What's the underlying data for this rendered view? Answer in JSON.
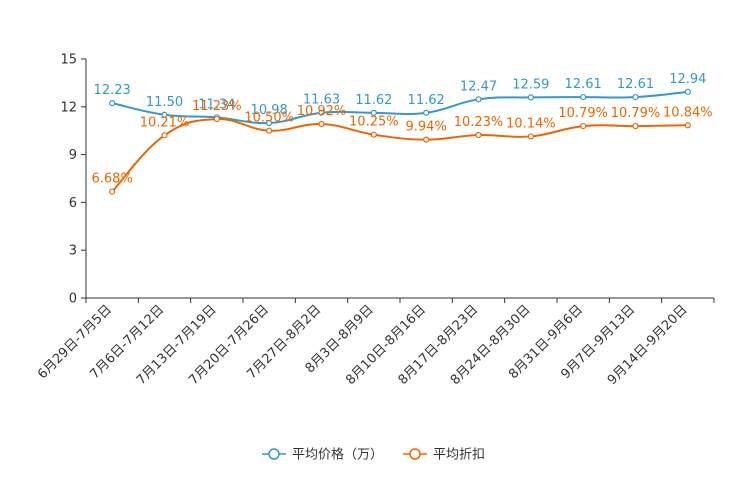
{
  "chart_data": {
    "type": "line",
    "title": "",
    "xlabel": "",
    "ylabel": "",
    "ylim": [
      0,
      15
    ],
    "yticks": [
      0,
      3,
      6,
      9,
      12,
      15
    ],
    "grid": false,
    "legend_position": "bottom-center",
    "categories": [
      "6月29日-7月5日",
      "7月6日-7月12日",
      "7月13日-7月19日",
      "7月20日-7月26日",
      "7月27日-8月2日",
      "8月3日-8月9日",
      "8月10日-8月16日",
      "8月17日-8月23日",
      "8月24日-8月30日",
      "8月31日-9月6日",
      "9月7日-9月13日",
      "9月14日-9月20日"
    ],
    "series": [
      {
        "name": "平均价格（万）",
        "color": "#3399cc",
        "values": [
          12.23,
          11.5,
          11.34,
          10.98,
          11.63,
          11.62,
          11.62,
          12.47,
          12.59,
          12.61,
          12.61,
          12.94
        ],
        "labels": [
          "12.23",
          "11.50",
          "11.34",
          "10.98",
          "11.63",
          "11.62",
          "11.62",
          "12.47",
          "12.59",
          "12.61",
          "12.61",
          "12.94"
        ]
      },
      {
        "name": "平均折扣",
        "color": "#ee6600",
        "values": [
          6.68,
          10.21,
          11.23,
          10.5,
          10.92,
          10.25,
          9.94,
          10.23,
          10.14,
          10.79,
          10.79,
          10.84
        ],
        "labels": [
          "6.68%",
          "10.21%",
          "11.23%",
          "10.50%",
          "10.92%",
          "10.25%",
          "9.94%",
          "10.23%",
          "10.14%",
          "10.79%",
          "10.79%",
          "10.84%"
        ]
      }
    ]
  }
}
